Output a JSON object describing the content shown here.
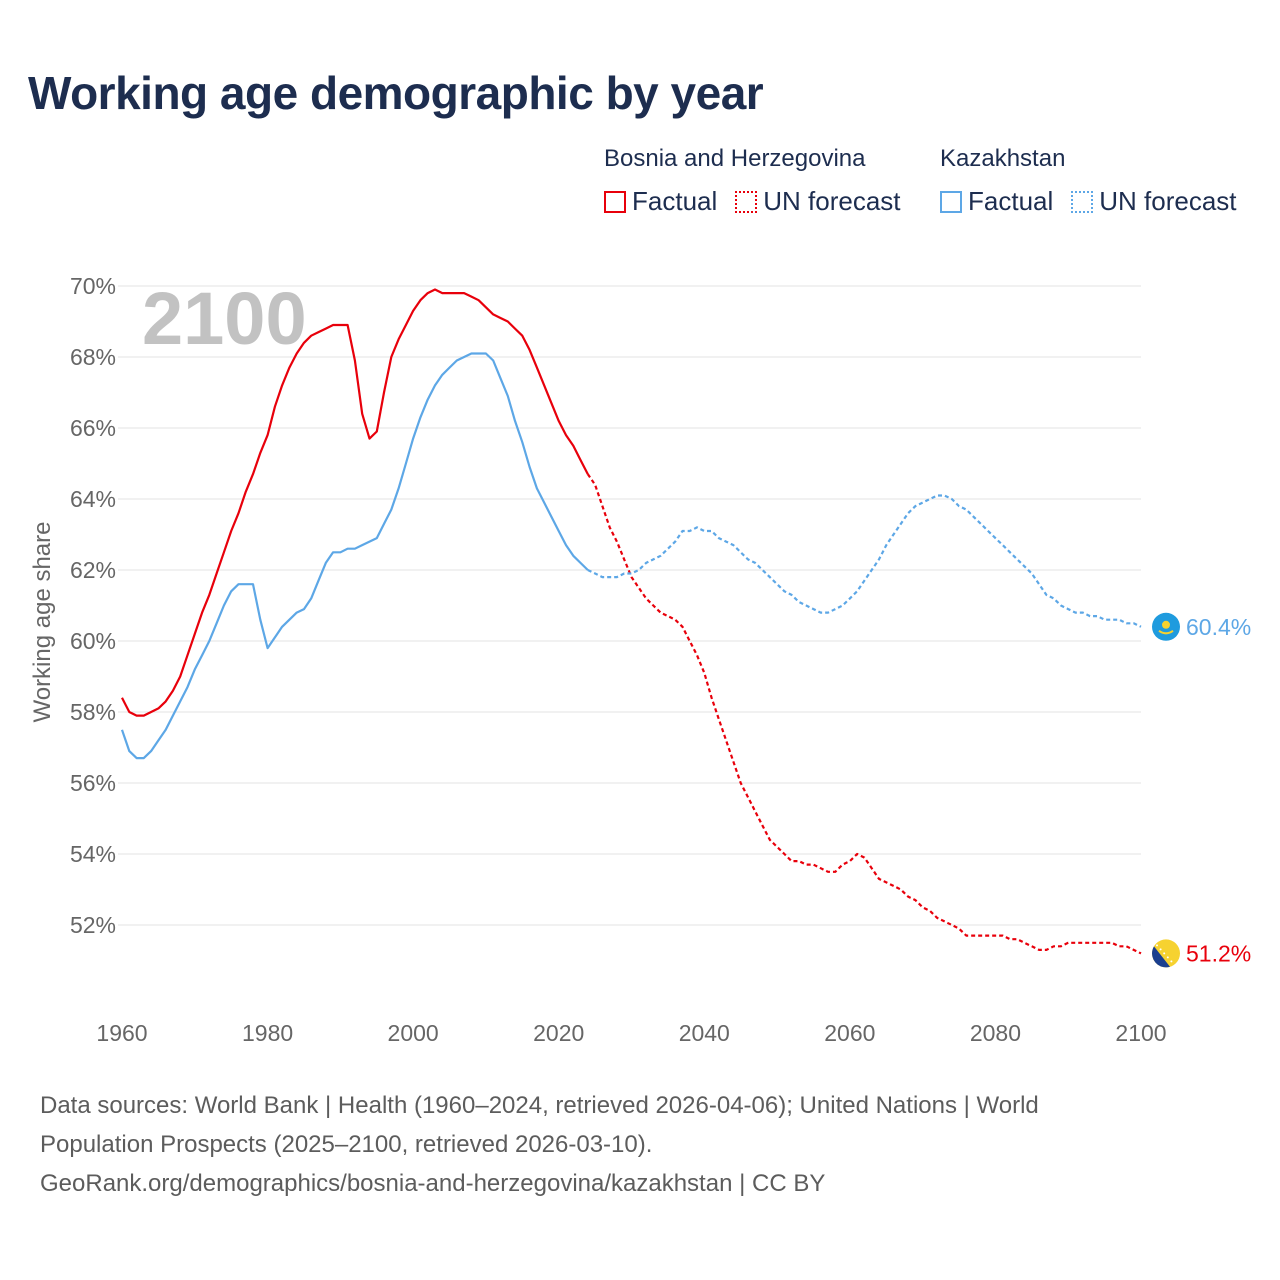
{
  "title": "Working age demographic by year",
  "legend": {
    "groups": [
      {
        "name": "Bosnia and Herzegovina",
        "color": "#e8000b",
        "factual_label": "Factual",
        "forecast_label": "UN forecast"
      },
      {
        "name": "Kazakhstan",
        "color": "#5da7e6",
        "factual_label": "Factual",
        "forecast_label": "UN forecast"
      }
    ]
  },
  "year_label": "2100",
  "source": {
    "line1": "Data sources: World Bank | Health (1960–2024, retrieved 2026-04-06); United Nations | World",
    "line2": "Population Prospects (2025–2100, retrieved 2026-03-10).",
    "line3": "GeoRank.org/demographics/bosnia-and-herzegovina/kazakhstan | CC BY"
  },
  "chart_data": {
    "type": "line",
    "title": "Working age demographic by year",
    "xlabel": "",
    "ylabel": "Working age share",
    "xlim": [
      1960,
      2100
    ],
    "ylim": [
      50,
      70
    ],
    "x_ticks": [
      1960,
      1980,
      2000,
      2020,
      2040,
      2060,
      2080,
      2100
    ],
    "x_tick_labels": [
      "1960",
      "1980",
      "2000",
      "2020",
      "2040",
      "2060",
      "2080",
      "2100"
    ],
    "y_ticks": [
      52,
      54,
      56,
      58,
      60,
      62,
      64,
      66,
      68,
      70
    ],
    "y_tick_labels": [
      "52%",
      "54%",
      "56%",
      "58%",
      "60%",
      "62%",
      "64%",
      "66%",
      "68%",
      "70%"
    ],
    "grid": true,
    "factual_end_year": 2024,
    "series": [
      {
        "name": "Bosnia and Herzegovina",
        "color": "#e8000b",
        "end_label": "51.2%",
        "points": [
          [
            1960,
            58.4
          ],
          [
            1961,
            58.0
          ],
          [
            1962,
            57.9
          ],
          [
            1963,
            57.9
          ],
          [
            1964,
            58.0
          ],
          [
            1965,
            58.1
          ],
          [
            1966,
            58.3
          ],
          [
            1967,
            58.6
          ],
          [
            1968,
            59.0
          ],
          [
            1969,
            59.6
          ],
          [
            1970,
            60.2
          ],
          [
            1971,
            60.8
          ],
          [
            1972,
            61.3
          ],
          [
            1973,
            61.9
          ],
          [
            1974,
            62.5
          ],
          [
            1975,
            63.1
          ],
          [
            1976,
            63.6
          ],
          [
            1977,
            64.2
          ],
          [
            1978,
            64.7
          ],
          [
            1979,
            65.3
          ],
          [
            1980,
            65.8
          ],
          [
            1981,
            66.6
          ],
          [
            1982,
            67.2
          ],
          [
            1983,
            67.7
          ],
          [
            1984,
            68.1
          ],
          [
            1985,
            68.4
          ],
          [
            1986,
            68.6
          ],
          [
            1987,
            68.7
          ],
          [
            1988,
            68.8
          ],
          [
            1989,
            68.9
          ],
          [
            1990,
            68.9
          ],
          [
            1991,
            68.9
          ],
          [
            1992,
            67.9
          ],
          [
            1993,
            66.4
          ],
          [
            1994,
            65.7
          ],
          [
            1995,
            65.9
          ],
          [
            1996,
            67.0
          ],
          [
            1997,
            68.0
          ],
          [
            1998,
            68.5
          ],
          [
            1999,
            68.9
          ],
          [
            2000,
            69.3
          ],
          [
            2001,
            69.6
          ],
          [
            2002,
            69.8
          ],
          [
            2003,
            69.9
          ],
          [
            2004,
            69.8
          ],
          [
            2005,
            69.8
          ],
          [
            2006,
            69.8
          ],
          [
            2007,
            69.8
          ],
          [
            2008,
            69.7
          ],
          [
            2009,
            69.6
          ],
          [
            2010,
            69.4
          ],
          [
            2011,
            69.2
          ],
          [
            2012,
            69.1
          ],
          [
            2013,
            69.0
          ],
          [
            2014,
            68.8
          ],
          [
            2015,
            68.6
          ],
          [
            2016,
            68.2
          ],
          [
            2017,
            67.7
          ],
          [
            2018,
            67.2
          ],
          [
            2019,
            66.7
          ],
          [
            2020,
            66.2
          ],
          [
            2021,
            65.8
          ],
          [
            2022,
            65.5
          ],
          [
            2023,
            65.1
          ],
          [
            2024,
            64.7
          ],
          [
            2025,
            64.4
          ],
          [
            2026,
            63.8
          ],
          [
            2027,
            63.2
          ],
          [
            2028,
            62.8
          ],
          [
            2029,
            62.3
          ],
          [
            2030,
            61.8
          ],
          [
            2031,
            61.5
          ],
          [
            2032,
            61.2
          ],
          [
            2033,
            61.0
          ],
          [
            2034,
            60.8
          ],
          [
            2035,
            60.7
          ],
          [
            2036,
            60.6
          ],
          [
            2037,
            60.4
          ],
          [
            2038,
            60.0
          ],
          [
            2039,
            59.6
          ],
          [
            2040,
            59.1
          ],
          [
            2041,
            58.4
          ],
          [
            2042,
            57.8
          ],
          [
            2043,
            57.2
          ],
          [
            2044,
            56.6
          ],
          [
            2045,
            56.0
          ],
          [
            2046,
            55.6
          ],
          [
            2047,
            55.2
          ],
          [
            2048,
            54.8
          ],
          [
            2049,
            54.4
          ],
          [
            2050,
            54.2
          ],
          [
            2051,
            54.0
          ],
          [
            2052,
            53.8
          ],
          [
            2053,
            53.8
          ],
          [
            2054,
            53.7
          ],
          [
            2055,
            53.7
          ],
          [
            2056,
            53.6
          ],
          [
            2057,
            53.5
          ],
          [
            2058,
            53.5
          ],
          [
            2059,
            53.7
          ],
          [
            2060,
            53.8
          ],
          [
            2061,
            54.0
          ],
          [
            2062,
            53.9
          ],
          [
            2063,
            53.6
          ],
          [
            2064,
            53.3
          ],
          [
            2065,
            53.2
          ],
          [
            2066,
            53.1
          ],
          [
            2067,
            53.0
          ],
          [
            2068,
            52.8
          ],
          [
            2069,
            52.7
          ],
          [
            2070,
            52.5
          ],
          [
            2071,
            52.4
          ],
          [
            2072,
            52.2
          ],
          [
            2073,
            52.1
          ],
          [
            2074,
            52.0
          ],
          [
            2075,
            51.9
          ],
          [
            2076,
            51.7
          ],
          [
            2077,
            51.7
          ],
          [
            2078,
            51.7
          ],
          [
            2079,
            51.7
          ],
          [
            2080,
            51.7
          ],
          [
            2081,
            51.7
          ],
          [
            2082,
            51.6
          ],
          [
            2083,
            51.6
          ],
          [
            2084,
            51.5
          ],
          [
            2085,
            51.4
          ],
          [
            2086,
            51.3
          ],
          [
            2087,
            51.3
          ],
          [
            2088,
            51.4
          ],
          [
            2089,
            51.4
          ],
          [
            2090,
            51.5
          ],
          [
            2091,
            51.5
          ],
          [
            2092,
            51.5
          ],
          [
            2093,
            51.5
          ],
          [
            2094,
            51.5
          ],
          [
            2095,
            51.5
          ],
          [
            2096,
            51.5
          ],
          [
            2097,
            51.4
          ],
          [
            2098,
            51.4
          ],
          [
            2099,
            51.3
          ],
          [
            2100,
            51.2
          ]
        ]
      },
      {
        "name": "Kazakhstan",
        "color": "#5da7e6",
        "end_label": "60.4%",
        "points": [
          [
            1960,
            57.5
          ],
          [
            1961,
            56.9
          ],
          [
            1962,
            56.7
          ],
          [
            1963,
            56.7
          ],
          [
            1964,
            56.9
          ],
          [
            1965,
            57.2
          ],
          [
            1966,
            57.5
          ],
          [
            1967,
            57.9
          ],
          [
            1968,
            58.3
          ],
          [
            1969,
            58.7
          ],
          [
            1970,
            59.2
          ],
          [
            1971,
            59.6
          ],
          [
            1972,
            60.0
          ],
          [
            1973,
            60.5
          ],
          [
            1974,
            61.0
          ],
          [
            1975,
            61.4
          ],
          [
            1976,
            61.6
          ],
          [
            1977,
            61.6
          ],
          [
            1978,
            61.6
          ],
          [
            1979,
            60.6
          ],
          [
            1980,
            59.8
          ],
          [
            1981,
            60.1
          ],
          [
            1982,
            60.4
          ],
          [
            1983,
            60.6
          ],
          [
            1984,
            60.8
          ],
          [
            1985,
            60.9
          ],
          [
            1986,
            61.2
          ],
          [
            1987,
            61.7
          ],
          [
            1988,
            62.2
          ],
          [
            1989,
            62.5
          ],
          [
            1990,
            62.5
          ],
          [
            1991,
            62.6
          ],
          [
            1992,
            62.6
          ],
          [
            1993,
            62.7
          ],
          [
            1994,
            62.8
          ],
          [
            1995,
            62.9
          ],
          [
            1996,
            63.3
          ],
          [
            1997,
            63.7
          ],
          [
            1998,
            64.3
          ],
          [
            1999,
            65.0
          ],
          [
            2000,
            65.7
          ],
          [
            2001,
            66.3
          ],
          [
            2002,
            66.8
          ],
          [
            2003,
            67.2
          ],
          [
            2004,
            67.5
          ],
          [
            2005,
            67.7
          ],
          [
            2006,
            67.9
          ],
          [
            2007,
            68.0
          ],
          [
            2008,
            68.1
          ],
          [
            2009,
            68.1
          ],
          [
            2010,
            68.1
          ],
          [
            2011,
            67.9
          ],
          [
            2012,
            67.4
          ],
          [
            2013,
            66.9
          ],
          [
            2014,
            66.2
          ],
          [
            2015,
            65.6
          ],
          [
            2016,
            64.9
          ],
          [
            2017,
            64.3
          ],
          [
            2018,
            63.9
          ],
          [
            2019,
            63.5
          ],
          [
            2020,
            63.1
          ],
          [
            2021,
            62.7
          ],
          [
            2022,
            62.4
          ],
          [
            2023,
            62.2
          ],
          [
            2024,
            62.0
          ],
          [
            2025,
            61.9
          ],
          [
            2026,
            61.8
          ],
          [
            2027,
            61.8
          ],
          [
            2028,
            61.8
          ],
          [
            2029,
            61.9
          ],
          [
            2030,
            61.9
          ],
          [
            2031,
            62.0
          ],
          [
            2032,
            62.2
          ],
          [
            2033,
            62.3
          ],
          [
            2034,
            62.4
          ],
          [
            2035,
            62.6
          ],
          [
            2036,
            62.8
          ],
          [
            2037,
            63.1
          ],
          [
            2038,
            63.1
          ],
          [
            2039,
            63.2
          ],
          [
            2040,
            63.1
          ],
          [
            2041,
            63.1
          ],
          [
            2042,
            62.9
          ],
          [
            2043,
            62.8
          ],
          [
            2044,
            62.7
          ],
          [
            2045,
            62.5
          ],
          [
            2046,
            62.3
          ],
          [
            2047,
            62.2
          ],
          [
            2048,
            62.0
          ],
          [
            2049,
            61.8
          ],
          [
            2050,
            61.6
          ],
          [
            2051,
            61.4
          ],
          [
            2052,
            61.3
          ],
          [
            2053,
            61.1
          ],
          [
            2054,
            61.0
          ],
          [
            2055,
            60.9
          ],
          [
            2056,
            60.8
          ],
          [
            2057,
            60.8
          ],
          [
            2058,
            60.9
          ],
          [
            2059,
            61.0
          ],
          [
            2060,
            61.2
          ],
          [
            2061,
            61.4
          ],
          [
            2062,
            61.7
          ],
          [
            2063,
            62.0
          ],
          [
            2064,
            62.3
          ],
          [
            2065,
            62.7
          ],
          [
            2066,
            63.0
          ],
          [
            2067,
            63.3
          ],
          [
            2068,
            63.6
          ],
          [
            2069,
            63.8
          ],
          [
            2070,
            63.9
          ],
          [
            2071,
            64.0
          ],
          [
            2072,
            64.1
          ],
          [
            2073,
            64.1
          ],
          [
            2074,
            64.0
          ],
          [
            2075,
            63.8
          ],
          [
            2076,
            63.7
          ],
          [
            2077,
            63.5
          ],
          [
            2078,
            63.3
          ],
          [
            2079,
            63.1
          ],
          [
            2080,
            62.9
          ],
          [
            2081,
            62.7
          ],
          [
            2082,
            62.5
          ],
          [
            2083,
            62.3
          ],
          [
            2084,
            62.1
          ],
          [
            2085,
            61.9
          ],
          [
            2086,
            61.6
          ],
          [
            2087,
            61.3
          ],
          [
            2088,
            61.2
          ],
          [
            2089,
            61.0
          ],
          [
            2090,
            60.9
          ],
          [
            2091,
            60.8
          ],
          [
            2092,
            60.8
          ],
          [
            2093,
            60.7
          ],
          [
            2094,
            60.7
          ],
          [
            2095,
            60.6
          ],
          [
            2096,
            60.6
          ],
          [
            2097,
            60.6
          ],
          [
            2098,
            60.5
          ],
          [
            2099,
            60.5
          ],
          [
            2100,
            60.4
          ]
        ]
      }
    ]
  }
}
